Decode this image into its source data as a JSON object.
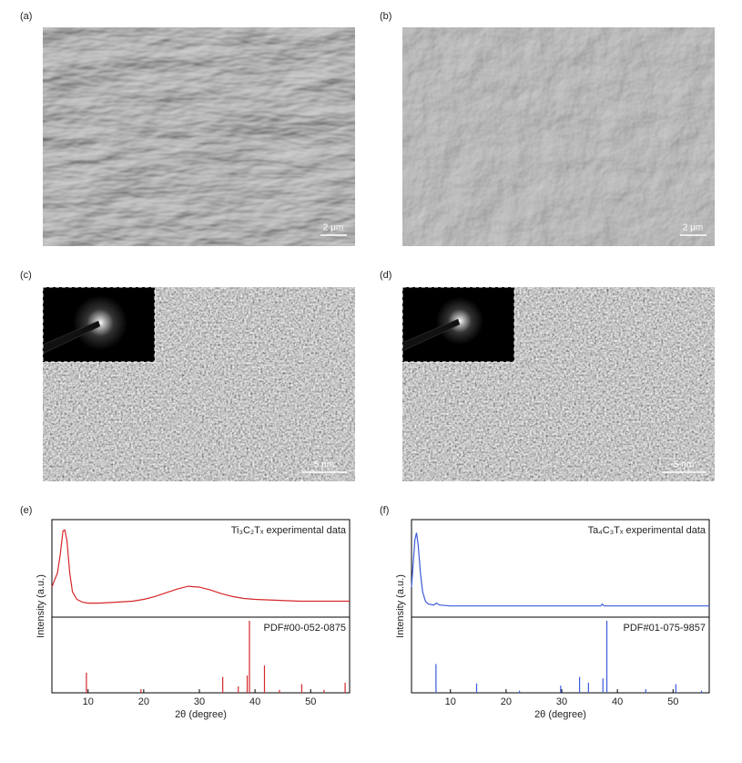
{
  "panels": [
    {
      "label": "(a)",
      "scale_bar": "2 μm"
    },
    {
      "label": "(b)",
      "scale_bar": "2 μm"
    },
    {
      "label": "(c)",
      "scale_bar": "5 nm"
    },
    {
      "label": "(d)",
      "scale_bar": "5 nm"
    }
  ],
  "chart_data": [
    {
      "type": "xrd",
      "label": "(e)",
      "xlabel": "2θ (degree)",
      "ylabel": "Intensity (a.u.)",
      "xlim": [
        3.5,
        57
      ],
      "xticks": [
        10,
        20,
        30,
        40,
        50
      ],
      "experimental": {
        "name": "Ti₃C₂Tₓ experimental data",
        "color": "#d62728",
        "ylim": [
          0,
          100
        ],
        "x": [
          3.5,
          4,
          4.5,
          5,
          5.5,
          5.8,
          6.2,
          6.7,
          7.2,
          8,
          9,
          10,
          12,
          15,
          18,
          20,
          22,
          24,
          26,
          28,
          30,
          32,
          34,
          36,
          38,
          40,
          44,
          48,
          52,
          57
        ],
        "values": [
          30,
          38,
          45,
          65,
          90,
          91,
          80,
          45,
          25,
          17,
          14,
          13,
          13,
          14,
          15,
          17,
          20,
          24,
          28,
          31,
          30,
          27,
          23,
          20,
          18,
          17,
          16,
          15,
          15,
          15
        ]
      },
      "reference": {
        "name": "PDF#00-052-0875",
        "color": "#d62728",
        "ylim": [
          0,
          100
        ],
        "x": [
          9.7,
          19.5,
          34.2,
          37,
          38.6,
          39,
          41.7,
          44.4,
          48.4,
          52.4,
          56.2
        ],
        "values": [
          28,
          5,
          22,
          9,
          24,
          100,
          38,
          4,
          12,
          4,
          14
        ]
      }
    },
    {
      "type": "xrd",
      "label": "(f)",
      "xlabel": "2θ (degree)",
      "ylabel": "Intensity (a.u.)",
      "xlim": [
        3,
        56.5
      ],
      "xticks": [
        10,
        20,
        30,
        40,
        50
      ],
      "experimental": {
        "name": "Ta₄C₃Tₓ experimental data",
        "color": "#3b5bdb",
        "ylim": [
          0,
          100
        ],
        "x": [
          3,
          3.3,
          3.6,
          3.9,
          4.2,
          4.6,
          5,
          5.5,
          6,
          7,
          7.5,
          8,
          10,
          15,
          20,
          30,
          37,
          37.3,
          37.6,
          45,
          56.5
        ],
        "values": [
          30,
          55,
          80,
          88,
          75,
          45,
          25,
          15,
          12,
          11,
          13,
          11,
          10,
          10,
          10,
          10,
          10,
          12,
          10,
          10,
          10
        ]
      },
      "reference": {
        "name": "PDF#01-075-9857",
        "color": "#3b5bdb",
        "ylim": [
          0,
          100
        ],
        "x": [
          7.4,
          14.7,
          22.4,
          29.8,
          33.2,
          34.8,
          37.4,
          38.1,
          45.1,
          50.5,
          55.1
        ],
        "values": [
          40,
          13,
          3,
          10,
          22,
          14,
          20,
          100,
          5,
          12,
          3
        ]
      }
    }
  ]
}
